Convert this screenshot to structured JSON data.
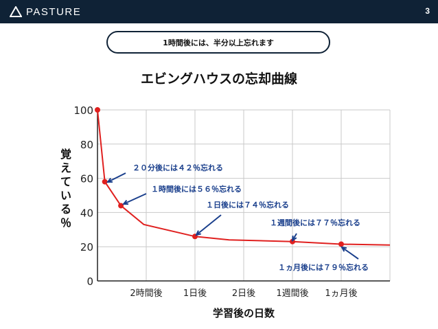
{
  "header": {
    "brand": "PASTURE",
    "page_number": "3"
  },
  "callout": {
    "text": "1時間後には、半分以上忘れます"
  },
  "chart_data": {
    "type": "line",
    "title": "エビングハウスの忘却曲線",
    "xlabel": "学習後の日数",
    "ylabel": "覚えている％",
    "ylim": [
      0,
      100
    ],
    "yticks": [
      "0",
      "20",
      "40",
      "60",
      "80",
      "100"
    ],
    "grid": true,
    "categories": [
      "2時間後",
      "1日後",
      "2日後",
      "1週間後",
      "1ヵ月後"
    ],
    "x_positions": [
      1.0,
      2.0,
      3.0,
      4.0,
      5.0
    ],
    "series": [
      {
        "color": "#e0201f",
        "points": [
          {
            "x": 0.0,
            "y": 100
          },
          {
            "x": 0.15,
            "y": 58
          },
          {
            "x": 0.48,
            "y": 44
          },
          {
            "x": 0.95,
            "y": 33
          },
          {
            "x": 2.0,
            "y": 26
          },
          {
            "x": 2.7,
            "y": 24
          },
          {
            "x": 4.0,
            "y": 23
          },
          {
            "x": 5.0,
            "y": 21.5
          },
          {
            "x": 6.0,
            "y": 21
          }
        ],
        "markers": [
          {
            "x": 0.0,
            "y": 100
          },
          {
            "x": 0.15,
            "y": 58
          },
          {
            "x": 0.48,
            "y": 44
          },
          {
            "x": 2.0,
            "y": 26
          },
          {
            "x": 4.0,
            "y": 23
          },
          {
            "x": 5.0,
            "y": 21.5
          }
        ]
      }
    ],
    "annotations": [
      {
        "text": "２０分後には４２％忘れる",
        "point": 1
      },
      {
        "text": "１時間後には５６％忘れる",
        "point": 2
      },
      {
        "text": "１日後には７４％忘れる",
        "point": 3
      },
      {
        "text": "１週間後には７７％忘れる",
        "point": 4
      },
      {
        "text": "１ヵ月後には７９％忘れる",
        "point": 5
      }
    ]
  }
}
